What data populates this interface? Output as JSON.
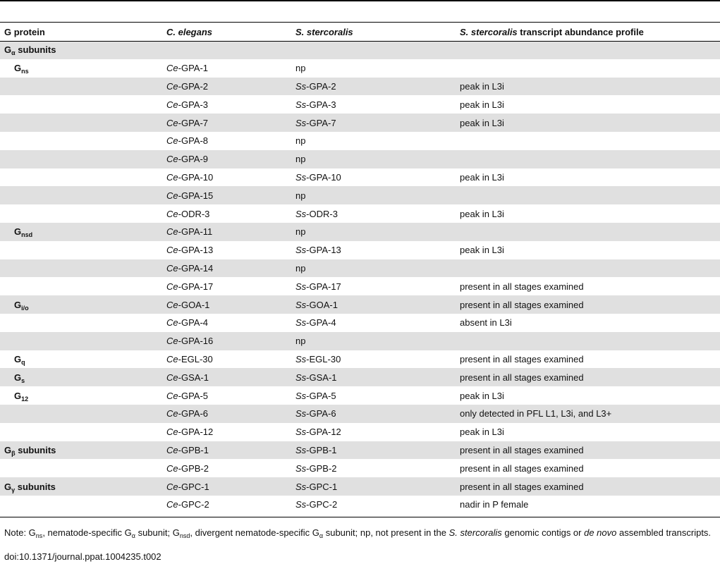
{
  "header": {
    "col1": "G protein",
    "col2": "C. elegans",
    "col3": "S. stercoralis",
    "col4_italic": "S. stercoralis",
    "col4_rest": " transcript abundance profile"
  },
  "rows": [
    {
      "type": "section",
      "g": "G",
      "gsub": "α",
      "gtail": " subunits",
      "shade": true
    },
    {
      "type": "sub",
      "g": "G",
      "gsub": "ns",
      "ce_pre": "Ce",
      "ce": "-GPA-1",
      "ss_pre": "",
      "ss": "np",
      "profile": "",
      "shade": false
    },
    {
      "type": "data",
      "ce_pre": "Ce",
      "ce": "-GPA-2",
      "ss_pre": "Ss",
      "ss": "-GPA-2",
      "profile": "peak in L3i",
      "shade": true
    },
    {
      "type": "data",
      "ce_pre": "Ce",
      "ce": "-GPA-3",
      "ss_pre": "Ss",
      "ss": "-GPA-3",
      "profile": "peak in L3i",
      "shade": false
    },
    {
      "type": "data",
      "ce_pre": "Ce",
      "ce": "-GPA-7",
      "ss_pre": "Ss",
      "ss": "-GPA-7",
      "profile": "peak in L3i",
      "shade": true
    },
    {
      "type": "data",
      "ce_pre": "Ce",
      "ce": "-GPA-8",
      "ss_pre": "",
      "ss": "np",
      "profile": "",
      "shade": false
    },
    {
      "type": "data",
      "ce_pre": "Ce",
      "ce": "-GPA-9",
      "ss_pre": "",
      "ss": "np",
      "profile": "",
      "shade": true
    },
    {
      "type": "data",
      "ce_pre": "Ce",
      "ce": "-GPA-10",
      "ss_pre": "Ss",
      "ss": "-GPA-10",
      "profile": "peak in L3i",
      "shade": false
    },
    {
      "type": "data",
      "ce_pre": "Ce",
      "ce": "-GPA-15",
      "ss_pre": "",
      "ss": "np",
      "profile": "",
      "shade": true
    },
    {
      "type": "data",
      "ce_pre": "Ce",
      "ce": "-ODR-3",
      "ss_pre": "Ss",
      "ss": "-ODR-3",
      "profile": "peak in L3i",
      "shade": false
    },
    {
      "type": "sub",
      "g": "G",
      "gsub": "nsd",
      "ce_pre": "Ce",
      "ce": "-GPA-11",
      "ss_pre": "",
      "ss": "np",
      "profile": "",
      "shade": true
    },
    {
      "type": "data",
      "ce_pre": "Ce",
      "ce": "-GPA-13",
      "ss_pre": "Ss",
      "ss": "-GPA-13",
      "profile": "peak in L3i",
      "shade": false
    },
    {
      "type": "data",
      "ce_pre": "Ce",
      "ce": "-GPA-14",
      "ss_pre": "",
      "ss": "np",
      "profile": "",
      "shade": true
    },
    {
      "type": "data",
      "ce_pre": "Ce",
      "ce": "-GPA-17",
      "ss_pre": "Ss",
      "ss": "-GPA-17",
      "profile": "present in all stages examined",
      "shade": false
    },
    {
      "type": "sub",
      "g": "G",
      "gsub": "i/o",
      "ce_pre": "Ce",
      "ce": "-GOA-1",
      "ss_pre": "Ss",
      "ss": "-GOA-1",
      "profile": "present in all stages examined",
      "shade": true
    },
    {
      "type": "data",
      "ce_pre": "Ce",
      "ce": "-GPA-4",
      "ss_pre": "Ss",
      "ss": "-GPA-4",
      "profile": "absent in L3i",
      "shade": false
    },
    {
      "type": "data",
      "ce_pre": "Ce",
      "ce": "-GPA-16",
      "ss_pre": "",
      "ss": "np",
      "profile": "",
      "shade": true
    },
    {
      "type": "sub",
      "g": "G",
      "gsub": "q",
      "ce_pre": "Ce",
      "ce": "-EGL-30",
      "ss_pre": "Ss",
      "ss": "-EGL-30",
      "profile": "present in all stages examined",
      "shade": false
    },
    {
      "type": "sub",
      "g": "G",
      "gsub": "s",
      "ce_pre": "Ce",
      "ce": "-GSA-1",
      "ss_pre": "Ss",
      "ss": "-GSA-1",
      "profile": "present in all stages examined",
      "shade": true
    },
    {
      "type": "sub",
      "g": "G",
      "gsub": "12",
      "ce_pre": "Ce",
      "ce": "-GPA-5",
      "ss_pre": "Ss",
      "ss": "-GPA-5",
      "profile": "peak in L3i",
      "shade": false
    },
    {
      "type": "data",
      "ce_pre": "Ce",
      "ce": "-GPA-6",
      "ss_pre": "Ss",
      "ss": "-GPA-6",
      "profile": "only detected in PFL L1, L3i, and L3+",
      "shade": true
    },
    {
      "type": "data",
      "ce_pre": "Ce",
      "ce": "-GPA-12",
      "ss_pre": "Ss",
      "ss": "-GPA-12",
      "profile": "peak in L3i",
      "shade": false
    },
    {
      "type": "sectiondata",
      "g": "G",
      "gsub": "β",
      "gtail": " subunits",
      "ce_pre": "Ce",
      "ce": "-GPB-1",
      "ss_pre": "Ss",
      "ss": "-GPB-1",
      "profile": "present in all stages examined",
      "shade": true
    },
    {
      "type": "data",
      "ce_pre": "Ce",
      "ce": "-GPB-2",
      "ss_pre": "Ss",
      "ss": "-GPB-2",
      "profile": "present in all stages examined",
      "shade": false
    },
    {
      "type": "sectiondata",
      "g": "G",
      "gsub": "γ",
      "gtail": " subunits",
      "ce_pre": "Ce",
      "ce": "-GPC-1",
      "ss_pre": "Ss",
      "ss": "-GPC-1",
      "profile": "present in all stages examined",
      "shade": true
    },
    {
      "type": "data",
      "ce_pre": "Ce",
      "ce": "-GPC-2",
      "ss_pre": "Ss",
      "ss": "-GPC-2",
      "profile": "nadir in P female",
      "shade": false
    }
  ],
  "note": {
    "p1": "Note: G",
    "s1": "ns",
    "p2": ", nematode-specific G",
    "s2": "α",
    "p3": " subunit; G",
    "s3": "nsd",
    "p4": ", divergent nematode-specific G",
    "s4": "α",
    "p5": " subunit; np, not present in the ",
    "i1": "S. stercoralis",
    "p6": " genomic contigs or ",
    "i2": "de novo",
    "p7": " assembled transcripts."
  },
  "doi": "doi:10.1371/journal.ppat.1004235.t002"
}
